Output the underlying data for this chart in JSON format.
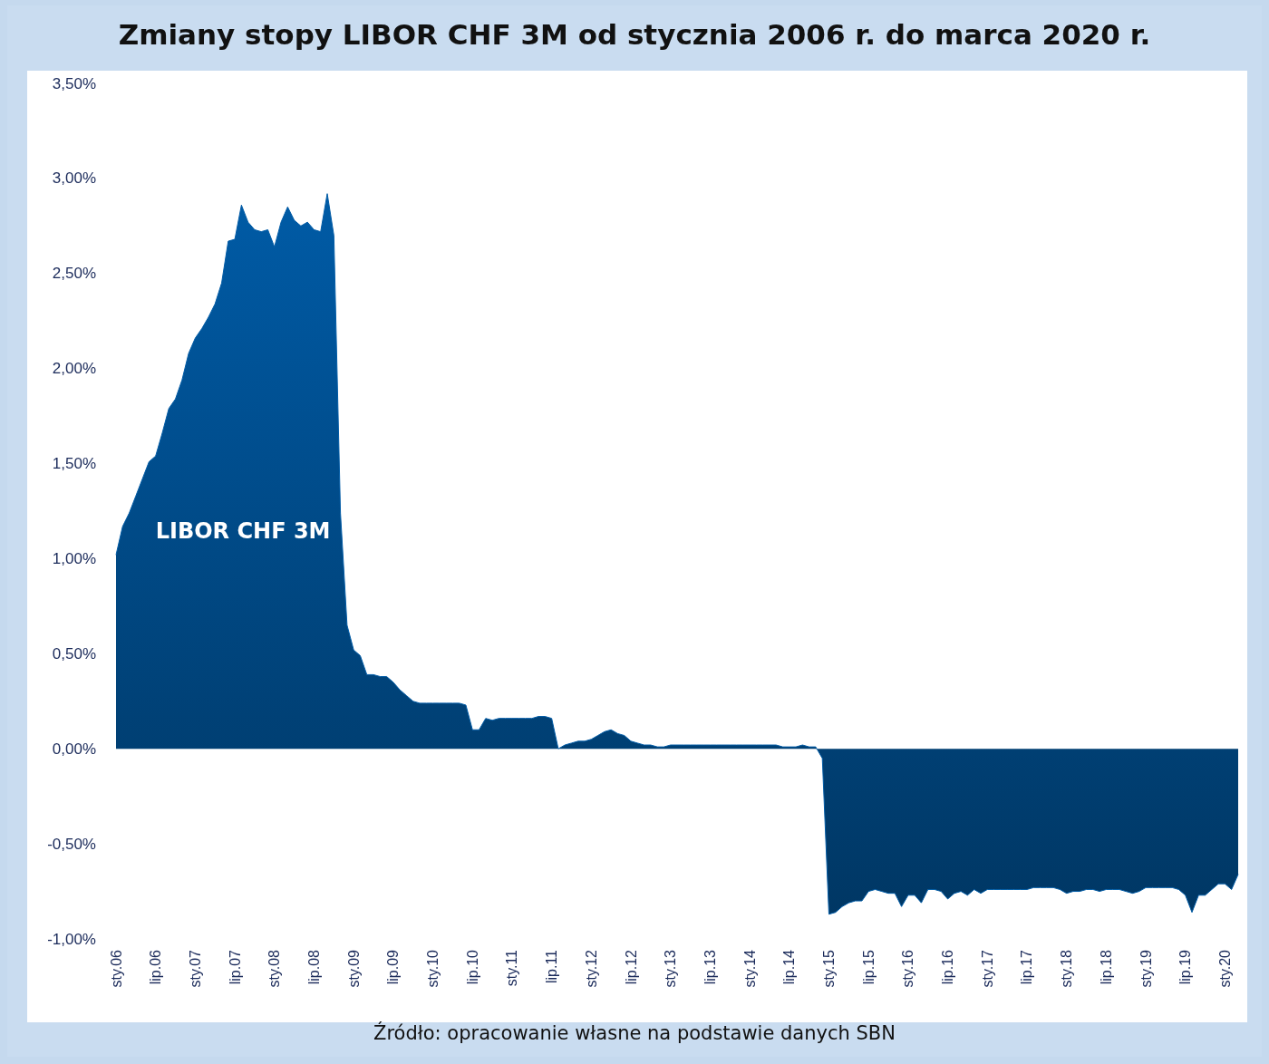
{
  "chart_data": {
    "type": "area",
    "title": "Zmiany stopy LIBOR CHF 3M od stycznia 2006 r. do marca 2020 r.",
    "annotations": [
      "Źródło: opracowanie własne na podstawie danych SBN"
    ],
    "categories": [
      "sty.06",
      null,
      null,
      null,
      null,
      null,
      "lip.06",
      null,
      null,
      null,
      null,
      null,
      "sty.07",
      null,
      null,
      null,
      null,
      null,
      "lip.07",
      null,
      null,
      null,
      null,
      null,
      "sty.08",
      null,
      null,
      null,
      null,
      null,
      "lip.08",
      null,
      null,
      null,
      null,
      null,
      "sty.09",
      null,
      null,
      null,
      null,
      null,
      "lip.09",
      null,
      null,
      null,
      null,
      null,
      "sty.10",
      null,
      null,
      null,
      null,
      null,
      "lip.10",
      null,
      null,
      null,
      null,
      null,
      "sty.11",
      null,
      null,
      null,
      null,
      null,
      "lip.11",
      null,
      null,
      null,
      null,
      null,
      "sty.12",
      null,
      null,
      null,
      null,
      null,
      "lip.12",
      null,
      null,
      null,
      null,
      null,
      "sty.13",
      null,
      null,
      null,
      null,
      null,
      "lip.13",
      null,
      null,
      null,
      null,
      null,
      "sty.14",
      null,
      null,
      null,
      null,
      null,
      "lip.14",
      null,
      null,
      null,
      null,
      null,
      "sty.15",
      null,
      null,
      null,
      null,
      null,
      "lip.15",
      null,
      null,
      null,
      null,
      null,
      "sty.16",
      null,
      null,
      null,
      null,
      null,
      "lip.16",
      null,
      null,
      null,
      null,
      null,
      "sty.17",
      null,
      null,
      null,
      null,
      null,
      "lip.17",
      null,
      null,
      null,
      null,
      null,
      "sty.18",
      null,
      null,
      null,
      null,
      null,
      "lip.18",
      null,
      null,
      null,
      null,
      null,
      "sty.19",
      null,
      null,
      null,
      null,
      null,
      "lip.19",
      null,
      null,
      null,
      null,
      null,
      "sty.20",
      null,
      null
    ],
    "series": [
      {
        "name": "LIBOR CHF 3M",
        "color": "#005ba6",
        "values": [
          1.02,
          1.17,
          1.24,
          1.33,
          1.42,
          1.51,
          1.54,
          1.66,
          1.79,
          1.84,
          1.94,
          2.08,
          2.16,
          2.21,
          2.27,
          2.34,
          2.45,
          2.67,
          2.68,
          2.86,
          2.77,
          2.73,
          2.72,
          2.73,
          2.64,
          2.77,
          2.85,
          2.78,
          2.75,
          2.77,
          2.73,
          2.72,
          2.92,
          2.7,
          1.24,
          0.65,
          0.52,
          0.49,
          0.39,
          0.39,
          0.38,
          0.38,
          0.35,
          0.31,
          0.28,
          0.25,
          0.24,
          0.24,
          0.24,
          0.24,
          0.24,
          0.24,
          0.24,
          0.23,
          0.1,
          0.1,
          0.16,
          0.15,
          0.16,
          0.16,
          0.16,
          0.16,
          0.16,
          0.16,
          0.17,
          0.17,
          0.16,
          0.0,
          0.02,
          0.03,
          0.04,
          0.04,
          0.05,
          0.07,
          0.09,
          0.1,
          0.08,
          0.07,
          0.04,
          0.03,
          0.02,
          0.02,
          0.01,
          0.01,
          0.02,
          0.02,
          0.02,
          0.02,
          0.02,
          0.02,
          0.02,
          0.02,
          0.02,
          0.02,
          0.02,
          0.02,
          0.02,
          0.02,
          0.02,
          0.02,
          0.02,
          0.01,
          0.01,
          0.01,
          0.02,
          0.01,
          0.01,
          -0.05,
          -0.87,
          -0.86,
          -0.83,
          -0.81,
          -0.8,
          -0.8,
          -0.75,
          -0.74,
          -0.75,
          -0.76,
          -0.76,
          -0.83,
          -0.77,
          -0.77,
          -0.81,
          -0.74,
          -0.74,
          -0.75,
          -0.79,
          -0.76,
          -0.75,
          -0.77,
          -0.74,
          -0.76,
          -0.74,
          -0.74,
          -0.74,
          -0.74,
          -0.74,
          -0.74,
          -0.74,
          -0.73,
          -0.73,
          -0.73,
          -0.73,
          -0.74,
          -0.76,
          -0.75,
          -0.75,
          -0.74,
          -0.74,
          -0.75,
          -0.74,
          -0.74,
          -0.74,
          -0.75,
          -0.76,
          -0.75,
          -0.73,
          -0.73,
          -0.73,
          -0.73,
          -0.73,
          -0.74,
          -0.77,
          -0.86,
          -0.77,
          -0.77,
          -0.74,
          -0.71,
          -0.71,
          -0.74,
          -0.66
        ]
      }
    ],
    "ylim": [
      -1,
      3.5
    ],
    "yticks": [
      {
        "value": -1,
        "label": "-1,00%"
      },
      {
        "value": -0.5,
        "label": "-0,50%"
      },
      {
        "value": 0,
        "label": "0,00%"
      },
      {
        "value": 0.5,
        "label": "0,50%"
      },
      {
        "value": 1,
        "label": "1,00%"
      },
      {
        "value": 1.5,
        "label": "1,50%"
      },
      {
        "value": 2,
        "label": "2,00%"
      },
      {
        "value": 2.5,
        "label": "2,50%"
      },
      {
        "value": 3,
        "label": "3,00%"
      },
      {
        "value": 3.5,
        "label": "3,50%"
      }
    ],
    "grid": false,
    "legend": false
  }
}
